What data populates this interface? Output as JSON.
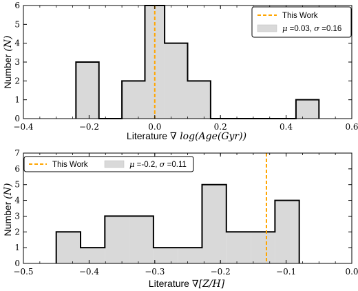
{
  "chart_data": [
    {
      "type": "histogram",
      "xlabel_text": "Literature ",
      "xlabel_math": "∇ log(Age(Gyr))",
      "ylabel_text": "Number ",
      "ylabel_math": "(N)",
      "xlim": [
        -0.4,
        0.6
      ],
      "ylim": [
        0,
        6
      ],
      "xticks": [
        -0.4,
        -0.2,
        0.0,
        0.2,
        0.4,
        0.6
      ],
      "xtick_labels": [
        "−0.4",
        "−0.2",
        "0.0",
        "0.2",
        "0.4",
        "0.6"
      ],
      "yticks": [
        0,
        1,
        2,
        3,
        4,
        5,
        6
      ],
      "bin_edges": [
        -0.24,
        -0.17,
        -0.1,
        -0.03,
        0.03,
        0.1,
        0.17,
        0.23,
        0.3,
        0.36,
        0.43,
        0.5
      ],
      "counts": [
        3,
        0,
        2,
        6,
        4,
        2,
        0,
        0,
        0,
        0,
        1
      ],
      "this_work_x": 0.0,
      "legend": {
        "position": "top-right",
        "this_work_label": "This Work",
        "hist_label_parts": [
          "μ",
          " =0.03, ",
          "σ",
          " =0.16"
        ]
      },
      "colors": {
        "fill": "#d9d9d9",
        "edge": "#000000",
        "line": "#ffa500"
      }
    },
    {
      "type": "histogram",
      "xlabel_text": "Literature ",
      "xlabel_math": "∇[Z/H]",
      "ylabel_text": "Number ",
      "ylabel_math": "(N)",
      "xlim": [
        -0.5,
        0.0
      ],
      "ylim": [
        0,
        7
      ],
      "xticks": [
        -0.5,
        -0.4,
        -0.3,
        -0.2,
        -0.1,
        0.0
      ],
      "xtick_labels": [
        "−0.5",
        "−0.4",
        "−0.3",
        "−0.2",
        "−0.1",
        "0.0"
      ],
      "yticks": [
        0,
        1,
        2,
        3,
        4,
        5,
        6,
        7
      ],
      "bin_edges": [
        -0.45,
        -0.413,
        -0.376,
        -0.339,
        -0.302,
        -0.265,
        -0.228,
        -0.191,
        -0.154,
        -0.117,
        -0.08
      ],
      "counts": [
        2,
        1,
        3,
        3,
        1,
        1,
        5,
        2,
        2,
        4
      ],
      "this_work_x": -0.13,
      "legend": {
        "position": "top-left",
        "this_work_label": "This Work",
        "hist_label_parts": [
          "μ",
          " =-0.2, ",
          "σ",
          " =0.11"
        ]
      },
      "colors": {
        "fill": "#d9d9d9",
        "edge": "#000000",
        "line": "#ffa500"
      }
    }
  ]
}
